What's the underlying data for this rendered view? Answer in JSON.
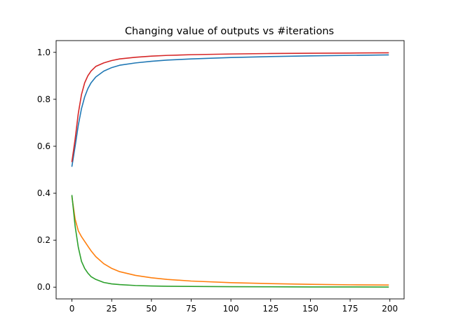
{
  "chart_data": {
    "type": "line",
    "title": "Changing value of outputs vs #iterations",
    "xlabel": "",
    "ylabel": "",
    "xlim": [
      -9.95,
      208.95
    ],
    "ylim": [
      -0.05,
      1.05
    ],
    "grid": false,
    "legend": "none",
    "x_ticks": [
      0,
      25,
      50,
      75,
      100,
      125,
      150,
      175,
      200
    ],
    "y_ticks": [
      0.0,
      0.2,
      0.4,
      0.6,
      0.8,
      1.0
    ],
    "x_tick_labels": [
      "0",
      "25",
      "50",
      "75",
      "100",
      "125",
      "150",
      "175",
      "200"
    ],
    "y_tick_labels": [
      "0.0",
      "0.2",
      "0.4",
      "0.6",
      "0.8",
      "1.0"
    ],
    "x": [
      0,
      2,
      4,
      6,
      8,
      10,
      12,
      15,
      20,
      25,
      30,
      40,
      50,
      60,
      75,
      100,
      125,
      150,
      175,
      199
    ],
    "series": [
      {
        "color": "#1f77b4",
        "values": [
          0.515,
          0.6,
          0.69,
          0.76,
          0.81,
          0.845,
          0.87,
          0.895,
          0.92,
          0.935,
          0.945,
          0.955,
          0.962,
          0.967,
          0.972,
          0.978,
          0.982,
          0.985,
          0.987,
          0.989
        ]
      },
      {
        "color": "#ff7f0e",
        "values": [
          0.385,
          0.29,
          0.24,
          0.215,
          0.195,
          0.175,
          0.155,
          0.13,
          0.1,
          0.08,
          0.066,
          0.05,
          0.04,
          0.033,
          0.026,
          0.019,
          0.015,
          0.012,
          0.01,
          0.009
        ]
      },
      {
        "color": "#2ca02c",
        "values": [
          0.39,
          0.26,
          0.17,
          0.11,
          0.08,
          0.06,
          0.045,
          0.033,
          0.02,
          0.014,
          0.011,
          0.007,
          0.005,
          0.004,
          0.003,
          0.002,
          0.0015,
          0.001,
          0.0008,
          0.0005
        ]
      },
      {
        "color": "#d62728",
        "values": [
          0.535,
          0.63,
          0.74,
          0.82,
          0.87,
          0.9,
          0.92,
          0.94,
          0.955,
          0.965,
          0.972,
          0.979,
          0.984,
          0.987,
          0.99,
          0.993,
          0.995,
          0.996,
          0.997,
          0.998
        ]
      }
    ]
  }
}
